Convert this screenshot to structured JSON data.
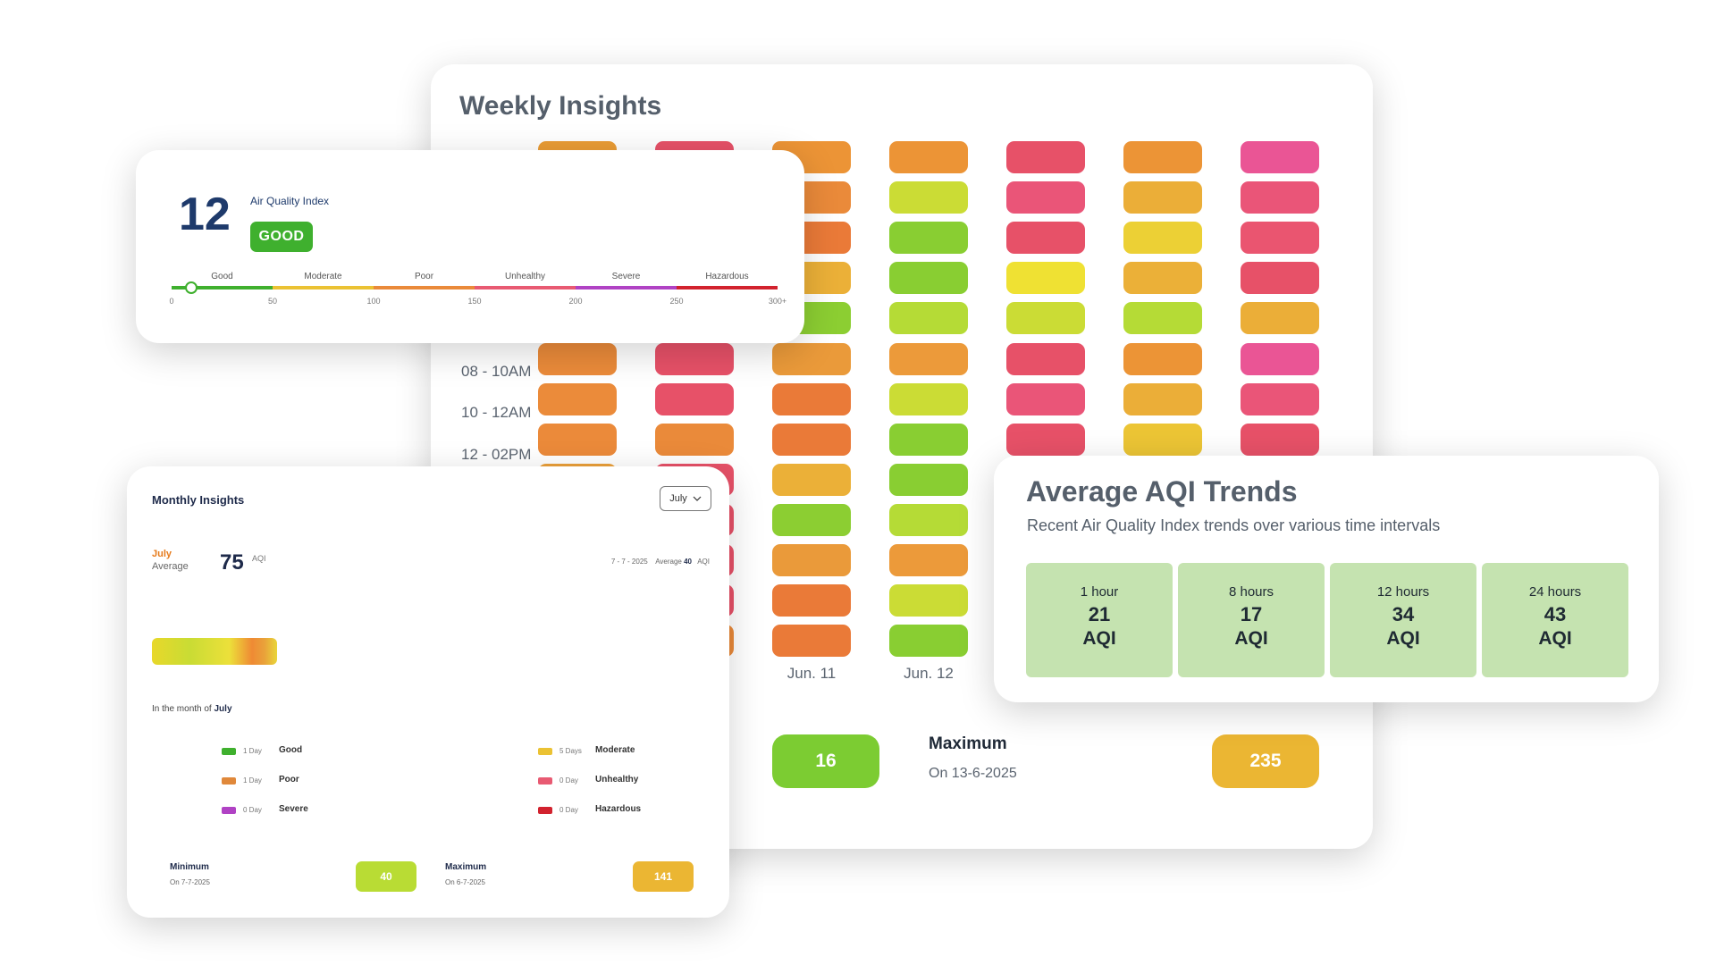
{
  "weekly": {
    "title": "Weekly Insights",
    "row_labels": [
      "08 - 10AM",
      "10 - 12AM",
      "12 - 02PM"
    ],
    "day_labels": [
      "Jun. 11",
      "Jun. 12"
    ],
    "columns": [
      [
        "#ea9c35",
        "#eb8a3a",
        "#ea8a3a",
        "#ebb038",
        "#c7dd38",
        "#eb8b3a",
        "#eb8b3a",
        "#eb8a3a",
        "#eba03a",
        "#c8dd34",
        "#ebb038",
        "#eb8b3a",
        "#ea8a3a"
      ],
      [
        "#e75168",
        "#e75168",
        "#e75168",
        "#e75168",
        "#e75168",
        "#e75168",
        "#e75168",
        "#ea8a3a",
        "#e75168",
        "#e75168",
        "#e75168",
        "#e75168",
        "#ea8a3a"
      ],
      [
        "#ec9436",
        "#ea8a3a",
        "#ea7a38",
        "#ebb038",
        "#8cce32",
        "#ea9a3a",
        "#ea7a38",
        "#ea7a38",
        "#ebb038",
        "#8cce32",
        "#ea9a3a",
        "#ea7a38",
        "#ea7a38"
      ],
      [
        "#ec9436",
        "#cbdc35",
        "#89ce32",
        "#89ce32",
        "#b5db36",
        "#ec9a3a",
        "#cbdc35",
        "#89ce32",
        "#89ce32",
        "#b5db36",
        "#ec9a3a",
        "#cbdc35",
        "#89ce32"
      ],
      [
        "#e75168",
        "#ea5578",
        "#e75168",
        "#efe133",
        "#cbdc35",
        "#e75168",
        "#ea5578",
        "#e75168"
      ],
      [
        "#ec9436",
        "#ebae38",
        "#ecd035",
        "#ebb038",
        "#b5db36",
        "#ec9436",
        "#ebae38",
        "#ecc535"
      ],
      [
        "#ea5595",
        "#ea5578",
        "#ea5570",
        "#e75168",
        "#ebae38",
        "#ea5595",
        "#ea5578",
        "#e75168"
      ]
    ],
    "minimum": {
      "value": "16",
      "color": "#7ccc32"
    },
    "maximum": {
      "title": "Maximum",
      "date": "On 13-6-2025",
      "value": "235",
      "color": "#ebb633"
    }
  },
  "aqi_card": {
    "value": "12",
    "label": "Air Quality Index",
    "status": "GOOD",
    "categories": [
      "Good",
      "Moderate",
      "Poor",
      "Unhealthy",
      "Severe",
      "Hazardous"
    ],
    "category_colors": [
      "#3fb02e",
      "#ebc233",
      "#ea8a3a",
      "#e85a72",
      "#b042c4",
      "#d2222e"
    ],
    "ticks": [
      "0",
      "50",
      "100",
      "150",
      "200",
      "250",
      "300+"
    ]
  },
  "monthly": {
    "title": "Monthly Insights",
    "selected_month": "July",
    "month_label": "July",
    "average_label": "Average",
    "average_value": "75",
    "unit": "AQI",
    "date": "7 - 7 - 2025",
    "date_average_label": "Average",
    "date_average_value": "40",
    "date_unit": "AQI",
    "intro": "In the month of",
    "intro_month": "July",
    "legend": [
      {
        "count": "1 Day",
        "name": "Good",
        "color": "#3fb02e"
      },
      {
        "count": "5 Days",
        "name": "Moderate",
        "color": "#ebc233"
      },
      {
        "count": "1 Day",
        "name": "Poor",
        "color": "#e0883a"
      },
      {
        "count": "0 Day",
        "name": "Unhealthy",
        "color": "#e85a72"
      },
      {
        "count": "0 Day",
        "name": "Severe",
        "color": "#b042c4"
      },
      {
        "count": "0 Day",
        "name": "Hazardous",
        "color": "#d2222e"
      }
    ],
    "minimum": {
      "title": "Minimum",
      "date": "On 7-7-2025",
      "value": "40",
      "color": "#b9dc34"
    },
    "maximum": {
      "title": "Maximum",
      "date": "On 6-7-2025",
      "value": "141",
      "color": "#ebb633"
    }
  },
  "trends": {
    "title": "Average AQI Trends",
    "subtitle": "Recent Air Quality Index trends over various time intervals",
    "items": [
      {
        "interval": "1 hour",
        "value": "21",
        "unit": "AQI"
      },
      {
        "interval": "8 hours",
        "value": "17",
        "unit": "AQI"
      },
      {
        "interval": "12 hours",
        "value": "34",
        "unit": "AQI"
      },
      {
        "interval": "24 hours",
        "value": "43",
        "unit": "AQI"
      }
    ]
  }
}
